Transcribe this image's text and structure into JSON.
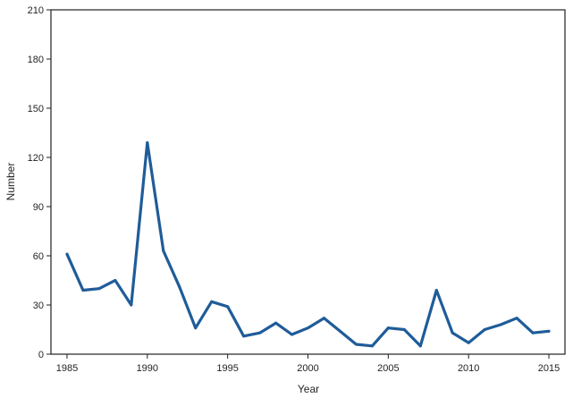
{
  "chart_data": {
    "type": "line",
    "title": "",
    "xlabel": "Year",
    "ylabel": "Number",
    "xlim": [
      1984,
      2016
    ],
    "ylim": [
      0,
      210
    ],
    "xticks": [
      1985,
      1990,
      1995,
      2000,
      2005,
      2010,
      2015
    ],
    "yticks": [
      0,
      30,
      60,
      90,
      120,
      150,
      180,
      210
    ],
    "x_tick_labels": [
      "1985",
      "1990",
      "1995",
      "2000",
      "2005",
      "2010",
      "2015"
    ],
    "y_tick_labels": [
      "0",
      "30",
      "60",
      "90",
      "120",
      "150",
      "180",
      "210"
    ],
    "grid": false,
    "legend": "none",
    "line_color": "#1f5c99",
    "series": [
      {
        "x": [
          1985,
          1986,
          1987,
          1988,
          1989,
          1990,
          1991,
          1992,
          1993,
          1994,
          1995,
          1996,
          1997,
          1998,
          1999,
          2000,
          2001,
          2002,
          2003,
          2004,
          2005,
          2006,
          2007,
          2008,
          2009,
          2010,
          2011,
          2012,
          2013,
          2014,
          2015
        ],
        "values": [
          61,
          39,
          40,
          45,
          30,
          129,
          63,
          41,
          16,
          32,
          29,
          11,
          13,
          19,
          12,
          16,
          22,
          14,
          6,
          5,
          16,
          15,
          5,
          39,
          13,
          7,
          15,
          18,
          22,
          13,
          14
        ]
      }
    ]
  }
}
